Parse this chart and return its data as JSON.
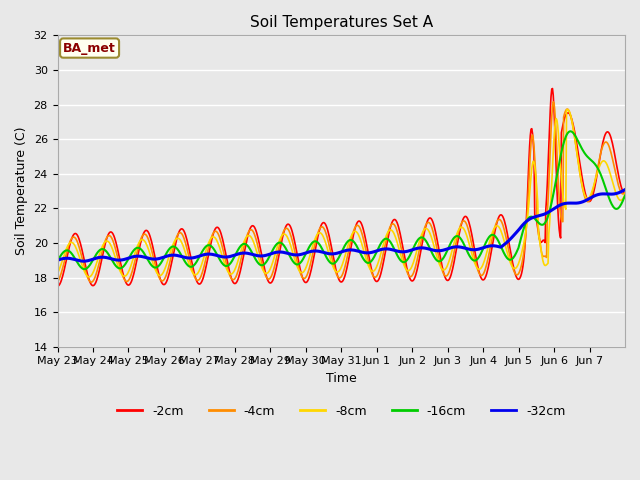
{
  "title": "Soil Temperatures Set A",
  "xlabel": "Time",
  "ylabel": "Soil Temperature (C)",
  "ylim": [
    14,
    32
  ],
  "yticks": [
    14,
    16,
    18,
    20,
    22,
    24,
    26,
    28,
    30,
    32
  ],
  "annotation_text": "BA_met",
  "annotation_color": "#8B0000",
  "annotation_bg": "#FFFFF0",
  "annotation_border": "#9B8B30",
  "background_color": "#E8E8E8",
  "plot_bg": "#E8E8E8",
  "line_colors": {
    "-2cm": "#FF0000",
    "-4cm": "#FF8C00",
    "-8cm": "#FFD700",
    "-16cm": "#00CC00",
    "-32cm": "#0000EE"
  },
  "line_widths": {
    "-2cm": 1.2,
    "-4cm": 1.2,
    "-8cm": 1.2,
    "-16cm": 1.5,
    "-32cm": 2.2
  },
  "xtick_labels": [
    "May 23",
    "May 24",
    "May 25",
    "May 26",
    "May 27",
    "May 28",
    "May 29",
    "May 30",
    "May 31",
    "Jun 1",
    "Jun 2",
    "Jun 3",
    "Jun 4",
    "Jun 5",
    "Jun 6",
    "Jun 7"
  ],
  "grid_color": "#FFFFFF",
  "title_fontsize": 11,
  "tick_fontsize": 8,
  "axis_label_fontsize": 9,
  "legend_fontsize": 9
}
